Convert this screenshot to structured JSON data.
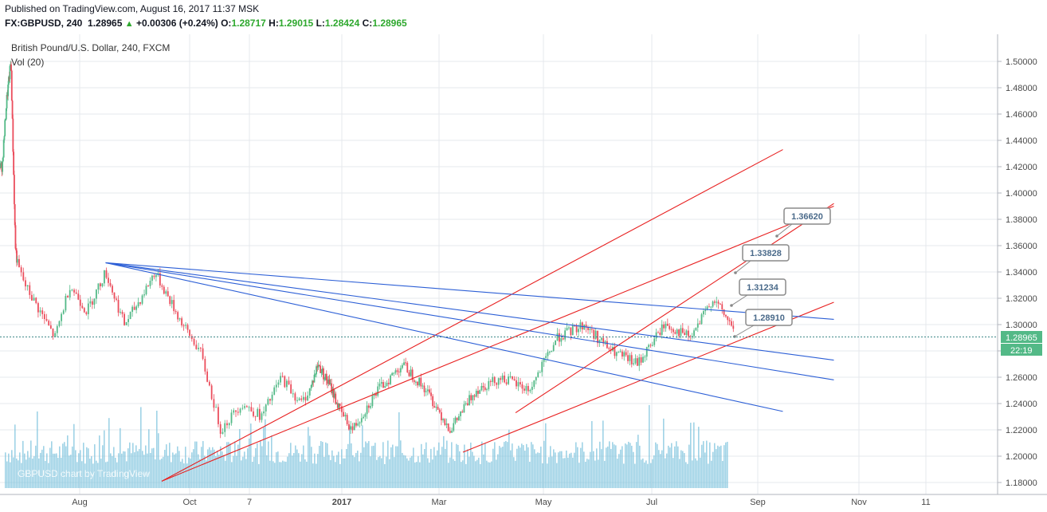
{
  "header": {
    "published": "Published on TradingView.com, August 16, 2017 11:37 MSK",
    "symbol": "FX:GBPUSD, 240",
    "last": "1.28965",
    "change_arrow": "▲",
    "change": "+0.00306 (+0.24%)",
    "o_label": "O:",
    "o": "1.28717",
    "h_label": "H:",
    "h": "1.29015",
    "l_label": "L:",
    "l": "1.28424",
    "c_label": "C:",
    "c": "1.28965"
  },
  "legend": {
    "title": "British Pound/U.S. Dollar, 240, FXCM",
    "volume": "Vol (20)"
  },
  "watermark": "GBPUSD chart by TradingView",
  "price_label": "1.28965",
  "time_label": "22:19",
  "colors": {
    "up": "#53b987",
    "down": "#eb4d5c",
    "trend_red": "#e82020",
    "trend_blue": "#2c5fd6",
    "volume": "#7fc4dd",
    "grid": "#e6e8ec"
  },
  "chart_data": {
    "type": "candlestick",
    "symbol": "GBPUSD",
    "interval": "240",
    "y_axis_ticks": [
      "1.50000",
      "1.48000",
      "1.46000",
      "1.44000",
      "1.42000",
      "1.40000",
      "1.38000",
      "1.36000",
      "1.34000",
      "1.32000",
      "1.30000",
      "1.28000",
      "1.26000",
      "1.24000",
      "1.22000",
      "1.20000",
      "1.18000"
    ],
    "x_axis_ticks": [
      "Aug",
      "Oct",
      "7",
      "2017",
      "Mar",
      "May",
      "Jul",
      "Sep",
      "Nov",
      "11"
    ],
    "price_path": [
      [
        "Jun 2016",
        1.42
      ],
      [
        "Jun 2016",
        1.47
      ],
      [
        "Jun 2016",
        1.5
      ],
      [
        "Jun 2016",
        1.36
      ],
      [
        "Jul 2016",
        1.33
      ],
      [
        "Jul 2016",
        1.31
      ],
      [
        "Jul 2016",
        1.29
      ],
      [
        "Jul 2016",
        1.33
      ],
      [
        "Aug 2016",
        1.31
      ],
      [
        "Aug 2016",
        1.34
      ],
      [
        "Aug 2016",
        1.3
      ],
      [
        "Sep 2016",
        1.32
      ],
      [
        "Sep 2016",
        1.34
      ],
      [
        "Sep 2016",
        1.32
      ],
      [
        "Sep 2016",
        1.3
      ],
      [
        "Oct 2016",
        1.28
      ],
      [
        "Oct 2016",
        1.22
      ],
      [
        "Oct 2016",
        1.24
      ],
      [
        "Nov 2016",
        1.23
      ],
      [
        "Nov 2016",
        1.26
      ],
      [
        "Nov 2016",
        1.24
      ],
      [
        "Dec 2016",
        1.27
      ],
      [
        "Dec 2016",
        1.25
      ],
      [
        "Jan 2017",
        1.22
      ],
      [
        "Jan 2017",
        1.25
      ],
      [
        "Feb 2017",
        1.27
      ],
      [
        "Feb 2017",
        1.25
      ],
      [
        "Mar 2017",
        1.22
      ],
      [
        "Mar 2017",
        1.25
      ],
      [
        "Apr 2017",
        1.26
      ],
      [
        "Apr 2017",
        1.25
      ],
      [
        "May 2017",
        1.29
      ],
      [
        "May 2017",
        1.3
      ],
      [
        "Jun 2017",
        1.28
      ],
      [
        "Jun 2017",
        1.27
      ],
      [
        "Jul 2017",
        1.3
      ],
      [
        "Jul 2017",
        1.29
      ],
      [
        "Aug 2017",
        1.32
      ],
      [
        "Aug 2017",
        1.3
      ],
      [
        "Aug 2017",
        1.29
      ]
    ],
    "annotations": [
      {
        "label": "1.36620",
        "value": 1.3662
      },
      {
        "label": "1.33828",
        "value": 1.33828
      },
      {
        "label": "1.31234",
        "value": 1.31234
      },
      {
        "label": "1.28910",
        "value": 1.2891
      }
    ],
    "trendlines": {
      "red": [
        {
          "from": [
            "Sep 2016",
            1.181
          ],
          "to": [
            "Sep 2017",
            1.433
          ]
        },
        {
          "from": [
            "Sep 2016",
            1.181
          ],
          "to": [
            "Oct 2017",
            1.39
          ]
        },
        {
          "from": [
            "Apr 2017",
            1.233
          ],
          "to": [
            "Oct 2017",
            1.392
          ]
        },
        {
          "from": [
            "Mar 2017",
            1.203
          ],
          "to": [
            "Oct 2017",
            1.317
          ]
        }
      ],
      "blue": [
        {
          "from": [
            "Aug 2016",
            1.347
          ],
          "to": [
            "Oct 2017",
            1.304
          ]
        },
        {
          "from": [
            "Aug 2016",
            1.347
          ],
          "to": [
            "Oct 2017",
            1.273
          ]
        },
        {
          "from": [
            "Aug 2016",
            1.347
          ],
          "to": [
            "Oct 2017",
            1.258
          ]
        },
        {
          "from": [
            "Aug 2016",
            1.347
          ],
          "to": [
            "Sep 2017",
            1.234
          ]
        }
      ]
    },
    "current_price": 1.28965,
    "grid": true
  }
}
